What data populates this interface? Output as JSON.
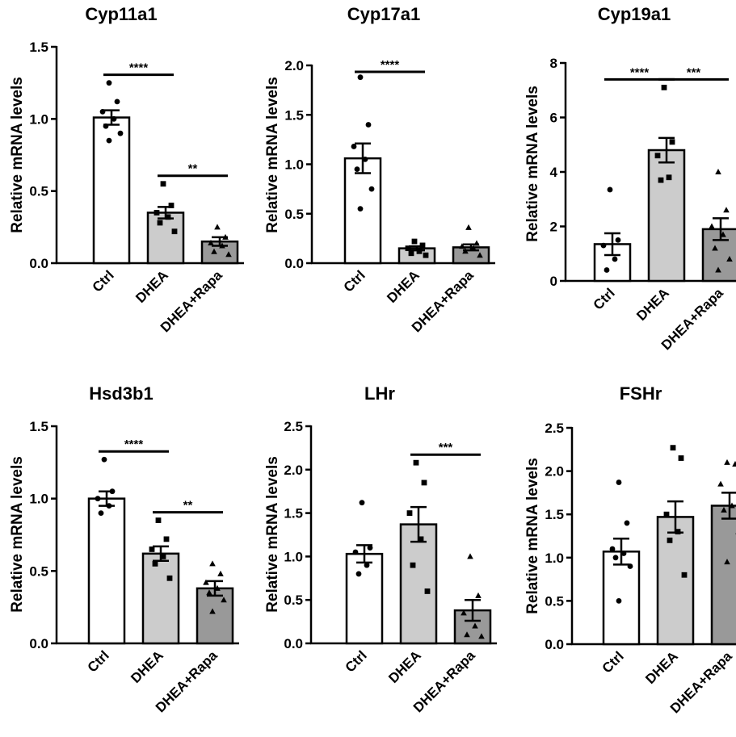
{
  "chart_data": [
    {
      "type": "bar",
      "title": "Cyp11a1",
      "ylabel": "Relative mRNA levels",
      "categories": [
        "Ctrl",
        "DHEA",
        "DHEA+Rapa"
      ],
      "ylim": [
        0,
        1.5
      ],
      "yticks": [
        "0.0",
        "0.5",
        "1.0",
        "1.5"
      ],
      "values": [
        1.01,
        0.35,
        0.15
      ],
      "sem": [
        0.05,
        0.04,
        0.03
      ],
      "points": [
        [
          1.25,
          1.12,
          1.05,
          1.0,
          0.95,
          0.9,
          0.85
        ],
        [
          0.55,
          0.4,
          0.35,
          0.32,
          0.28,
          0.22
        ],
        [
          0.25,
          0.18,
          0.14,
          0.12,
          0.08,
          0.06
        ]
      ],
      "bar_colors": [
        "#ffffff",
        "#cccccc",
        "#999999"
      ],
      "significance": [
        {
          "from": 0,
          "to": 1,
          "label": "****"
        },
        {
          "from": 1,
          "to": 2,
          "label": "**"
        }
      ]
    },
    {
      "type": "bar",
      "title": "Cyp17a1",
      "ylabel": "Relative mRNA levels",
      "categories": [
        "Ctrl",
        "DHEA",
        "DHEA+Rapa"
      ],
      "ylim": [
        0,
        2.0
      ],
      "yticks": [
        "0.0",
        "0.5",
        "1.0",
        "1.5",
        "2.0"
      ],
      "values": [
        1.06,
        0.15,
        0.16
      ],
      "sem": [
        0.15,
        0.02,
        0.03
      ],
      "points": [
        [
          1.88,
          1.4,
          1.18,
          1.05,
          0.95,
          0.75,
          0.55
        ],
        [
          0.22,
          0.18,
          0.15,
          0.12,
          0.1,
          0.08
        ],
        [
          0.36,
          0.2,
          0.17,
          0.15,
          0.12,
          0.08
        ]
      ],
      "bar_colors": [
        "#ffffff",
        "#cccccc",
        "#999999"
      ],
      "significance": [
        {
          "from": 0,
          "to": 1,
          "label": "****"
        }
      ]
    },
    {
      "type": "bar",
      "title": "Cyp19a1",
      "ylabel": "Relative mRNA levels",
      "categories": [
        "Ctrl",
        "DHEA",
        "DHEA+Rapa"
      ],
      "ylim": [
        0,
        8
      ],
      "yticks": [
        "0",
        "2",
        "4",
        "6",
        "8"
      ],
      "values": [
        1.35,
        4.8,
        1.9
      ],
      "sem": [
        0.4,
        0.45,
        0.4
      ],
      "points": [
        [
          3.35,
          1.5,
          1.3,
          0.8,
          0.4
        ],
        [
          7.1,
          5.1,
          4.6,
          3.8,
          3.7
        ],
        [
          4.0,
          2.6,
          2.0,
          1.7,
          1.2,
          0.8,
          0.4
        ]
      ],
      "bar_colors": [
        "#ffffff",
        "#cccccc",
        "#999999"
      ],
      "significance": [
        {
          "from": 0,
          "to": 1,
          "label": "****"
        },
        {
          "from": 1,
          "to": 2,
          "label": "***"
        }
      ]
    },
    {
      "type": "bar",
      "title": "Hsd3b1",
      "ylabel": "Relative mRNA levels",
      "categories": [
        "Ctrl",
        "DHEA",
        "DHEA+Rapa"
      ],
      "ylim": [
        0,
        1.5
      ],
      "yticks": [
        "0.0",
        "0.5",
        "1.0",
        "1.5"
      ],
      "values": [
        1.0,
        0.62,
        0.38
      ],
      "sem": [
        0.05,
        0.05,
        0.05
      ],
      "points": [
        [
          1.27,
          1.05,
          1.0,
          0.95,
          0.9
        ],
        [
          0.85,
          0.72,
          0.65,
          0.6,
          0.55,
          0.45
        ],
        [
          0.55,
          0.48,
          0.42,
          0.38,
          0.35,
          0.3,
          0.22
        ]
      ],
      "bar_colors": [
        "#ffffff",
        "#cccccc",
        "#999999"
      ],
      "significance": [
        {
          "from": 0,
          "to": 1,
          "label": "****"
        },
        {
          "from": 1,
          "to": 2,
          "label": "**"
        }
      ]
    },
    {
      "type": "bar",
      "title": "LHr",
      "ylabel": "Relative mRNA levels",
      "categories": [
        "Ctrl",
        "DHEA",
        "DHEA+Rapa"
      ],
      "ylim": [
        0,
        2.5
      ],
      "yticks": [
        "0.0",
        "0.5",
        "1.0",
        "1.5",
        "2.0",
        "2.5"
      ],
      "values": [
        1.03,
        1.37,
        0.38
      ],
      "sem": [
        0.1,
        0.2,
        0.12
      ],
      "points": [
        [
          1.62,
          1.1,
          1.05,
          0.9,
          0.8
        ],
        [
          2.08,
          1.85,
          1.5,
          1.2,
          0.9,
          0.6
        ],
        [
          1.0,
          0.55,
          0.35,
          0.2,
          0.1,
          0.08
        ]
      ],
      "bar_colors": [
        "#ffffff",
        "#cccccc",
        "#999999"
      ],
      "significance": [
        {
          "from": 1,
          "to": 2,
          "label": "***"
        }
      ]
    },
    {
      "type": "bar",
      "title": "FSHr",
      "ylabel": "Relative mRNA levels",
      "categories": [
        "Ctrl",
        "DHEA",
        "DHEA+Rapa"
      ],
      "ylim": [
        0,
        2.5
      ],
      "yticks": [
        "0.0",
        "0.5",
        "1.0",
        "1.5",
        "2.0",
        "2.5"
      ],
      "values": [
        1.07,
        1.47,
        1.6
      ],
      "sem": [
        0.15,
        0.18,
        0.15
      ],
      "points": [
        [
          1.87,
          1.4,
          1.1,
          1.05,
          1.0,
          0.9,
          0.5
        ],
        [
          2.27,
          2.15,
          1.5,
          1.3,
          1.2,
          0.8
        ],
        [
          2.1,
          2.08,
          1.85,
          1.6,
          1.55,
          1.3,
          0.95
        ]
      ],
      "bar_colors": [
        "#ffffff",
        "#cccccc",
        "#999999"
      ],
      "significance": []
    }
  ]
}
